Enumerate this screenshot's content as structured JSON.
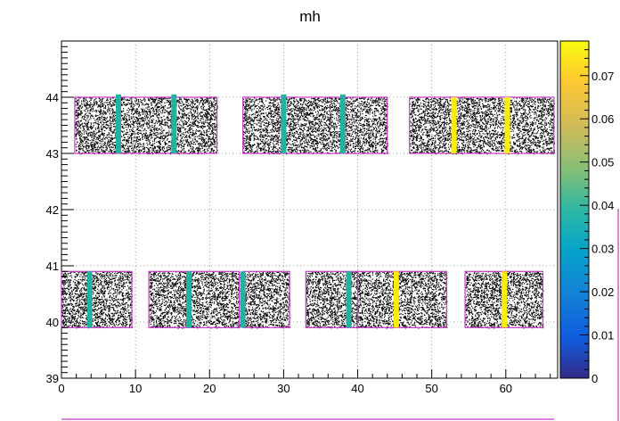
{
  "chart_data": {
    "type": "scatter",
    "title": "mh",
    "xlabel": "",
    "ylabel": "",
    "xlim": [
      0,
      67
    ],
    "ylim": [
      39,
      45
    ],
    "grid": true,
    "x_ticks": [
      0,
      10,
      20,
      30,
      40,
      50,
      60
    ],
    "y_ticks": [
      39,
      40,
      41,
      42,
      43,
      44
    ],
    "colorbar": {
      "range": [
        0,
        0.078
      ],
      "ticks": [
        0,
        0.01,
        0.02,
        0.03,
        0.04,
        0.05,
        0.06,
        0.07
      ]
    },
    "regions": [
      {
        "x": [
          1.8,
          21
        ],
        "y": [
          43.0,
          44.0
        ]
      },
      {
        "x": [
          24.5,
          44
        ],
        "y": [
          43.0,
          44.0
        ]
      },
      {
        "x": [
          47,
          66.5
        ],
        "y": [
          43.0,
          44.0
        ]
      },
      {
        "x": [
          0,
          9.5
        ],
        "y": [
          39.9,
          40.9
        ]
      },
      {
        "x": [
          11.8,
          24
        ],
        "y": [
          39.9,
          40.9
        ]
      },
      {
        "x": [
          24.5,
          30.8
        ],
        "y": [
          39.9,
          40.9
        ]
      },
      {
        "x": [
          33,
          40
        ],
        "y": [
          39.9,
          40.9
        ]
      },
      {
        "x": [
          40,
          52
        ],
        "y": [
          39.9,
          40.9
        ]
      },
      {
        "x": [
          54.5,
          65
        ],
        "y": [
          39.9,
          40.9
        ]
      }
    ],
    "highlight_columns": [
      {
        "x": 7.7,
        "y": [
          43.0,
          44.05
        ],
        "value": 0.037
      },
      {
        "x": 15.2,
        "y": [
          43.0,
          44.05
        ],
        "value": 0.037
      },
      {
        "x": 30.0,
        "y": [
          43.0,
          44.05
        ],
        "value": 0.037
      },
      {
        "x": 38.0,
        "y": [
          43.0,
          44.05
        ],
        "value": 0.037
      },
      {
        "x": 53.0,
        "y": [
          43.0,
          44.0
        ],
        "value": 0.075
      },
      {
        "x": 60.2,
        "y": [
          43.0,
          44.0
        ],
        "value": 0.075
      },
      {
        "x": 3.8,
        "y": [
          39.9,
          40.9
        ],
        "value": 0.037
      },
      {
        "x": 17.2,
        "y": [
          39.9,
          40.9
        ],
        "value": 0.037
      },
      {
        "x": 24.5,
        "y": [
          39.9,
          40.9
        ],
        "value": 0.037
      },
      {
        "x": 38.8,
        "y": [
          39.9,
          40.9
        ],
        "value": 0.037
      },
      {
        "x": 45.2,
        "y": [
          39.9,
          40.9
        ],
        "value": 0.075
      },
      {
        "x": 59.8,
        "y": [
          39.9,
          40.9
        ],
        "value": 0.075
      }
    ]
  },
  "colors": {
    "box": "#cc33cc",
    "teal": "#26b0a0",
    "yellow": "#ffee00",
    "grid": "#888888"
  }
}
